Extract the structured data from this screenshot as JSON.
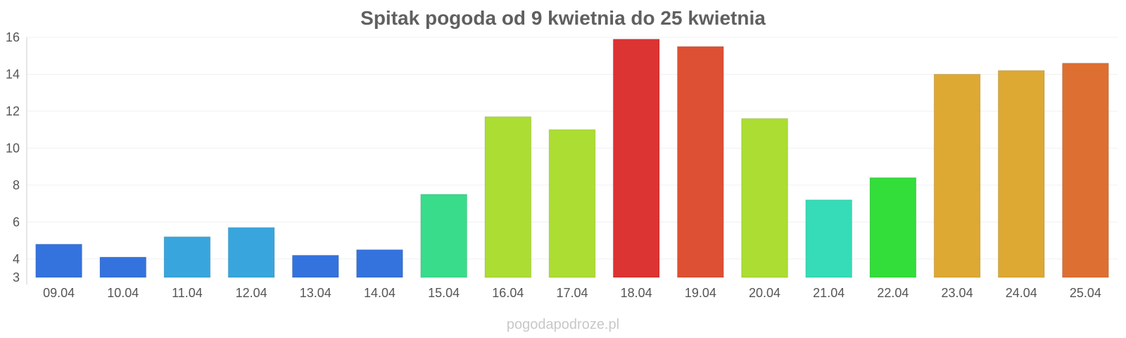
{
  "chart_data": {
    "type": "bar",
    "title": "Spitak pogoda od 9 kwietnia do 25 kwietnia",
    "xlabel": "",
    "ylabel": "",
    "categories": [
      "09.04",
      "10.04",
      "11.04",
      "12.04",
      "13.04",
      "14.04",
      "15.04",
      "16.04",
      "17.04",
      "18.04",
      "19.04",
      "20.04",
      "21.04",
      "22.04",
      "23.04",
      "24.04",
      "25.04"
    ],
    "values": [
      4.8,
      4.1,
      5.2,
      5.7,
      4.2,
      4.5,
      7.5,
      11.7,
      11.0,
      15.9,
      15.5,
      11.6,
      7.2,
      8.4,
      14.0,
      14.2,
      14.6
    ],
    "colors": [
      "#3473dd",
      "#3473dd",
      "#38a6dd",
      "#38a6dd",
      "#3473dd",
      "#3473dd",
      "#38dc8b",
      "#abdd33",
      "#abdd33",
      "#dc3333",
      "#dd5033",
      "#abdd33",
      "#36dbb8",
      "#33dd3a",
      "#dda933",
      "#dda933",
      "#dd6f33"
    ],
    "ylim": [
      3,
      16
    ],
    "yticks": [
      3,
      4,
      6,
      8,
      10,
      12,
      14,
      16
    ],
    "grid": true,
    "legend": "none"
  },
  "watermark": "pogodapodroze.pl"
}
